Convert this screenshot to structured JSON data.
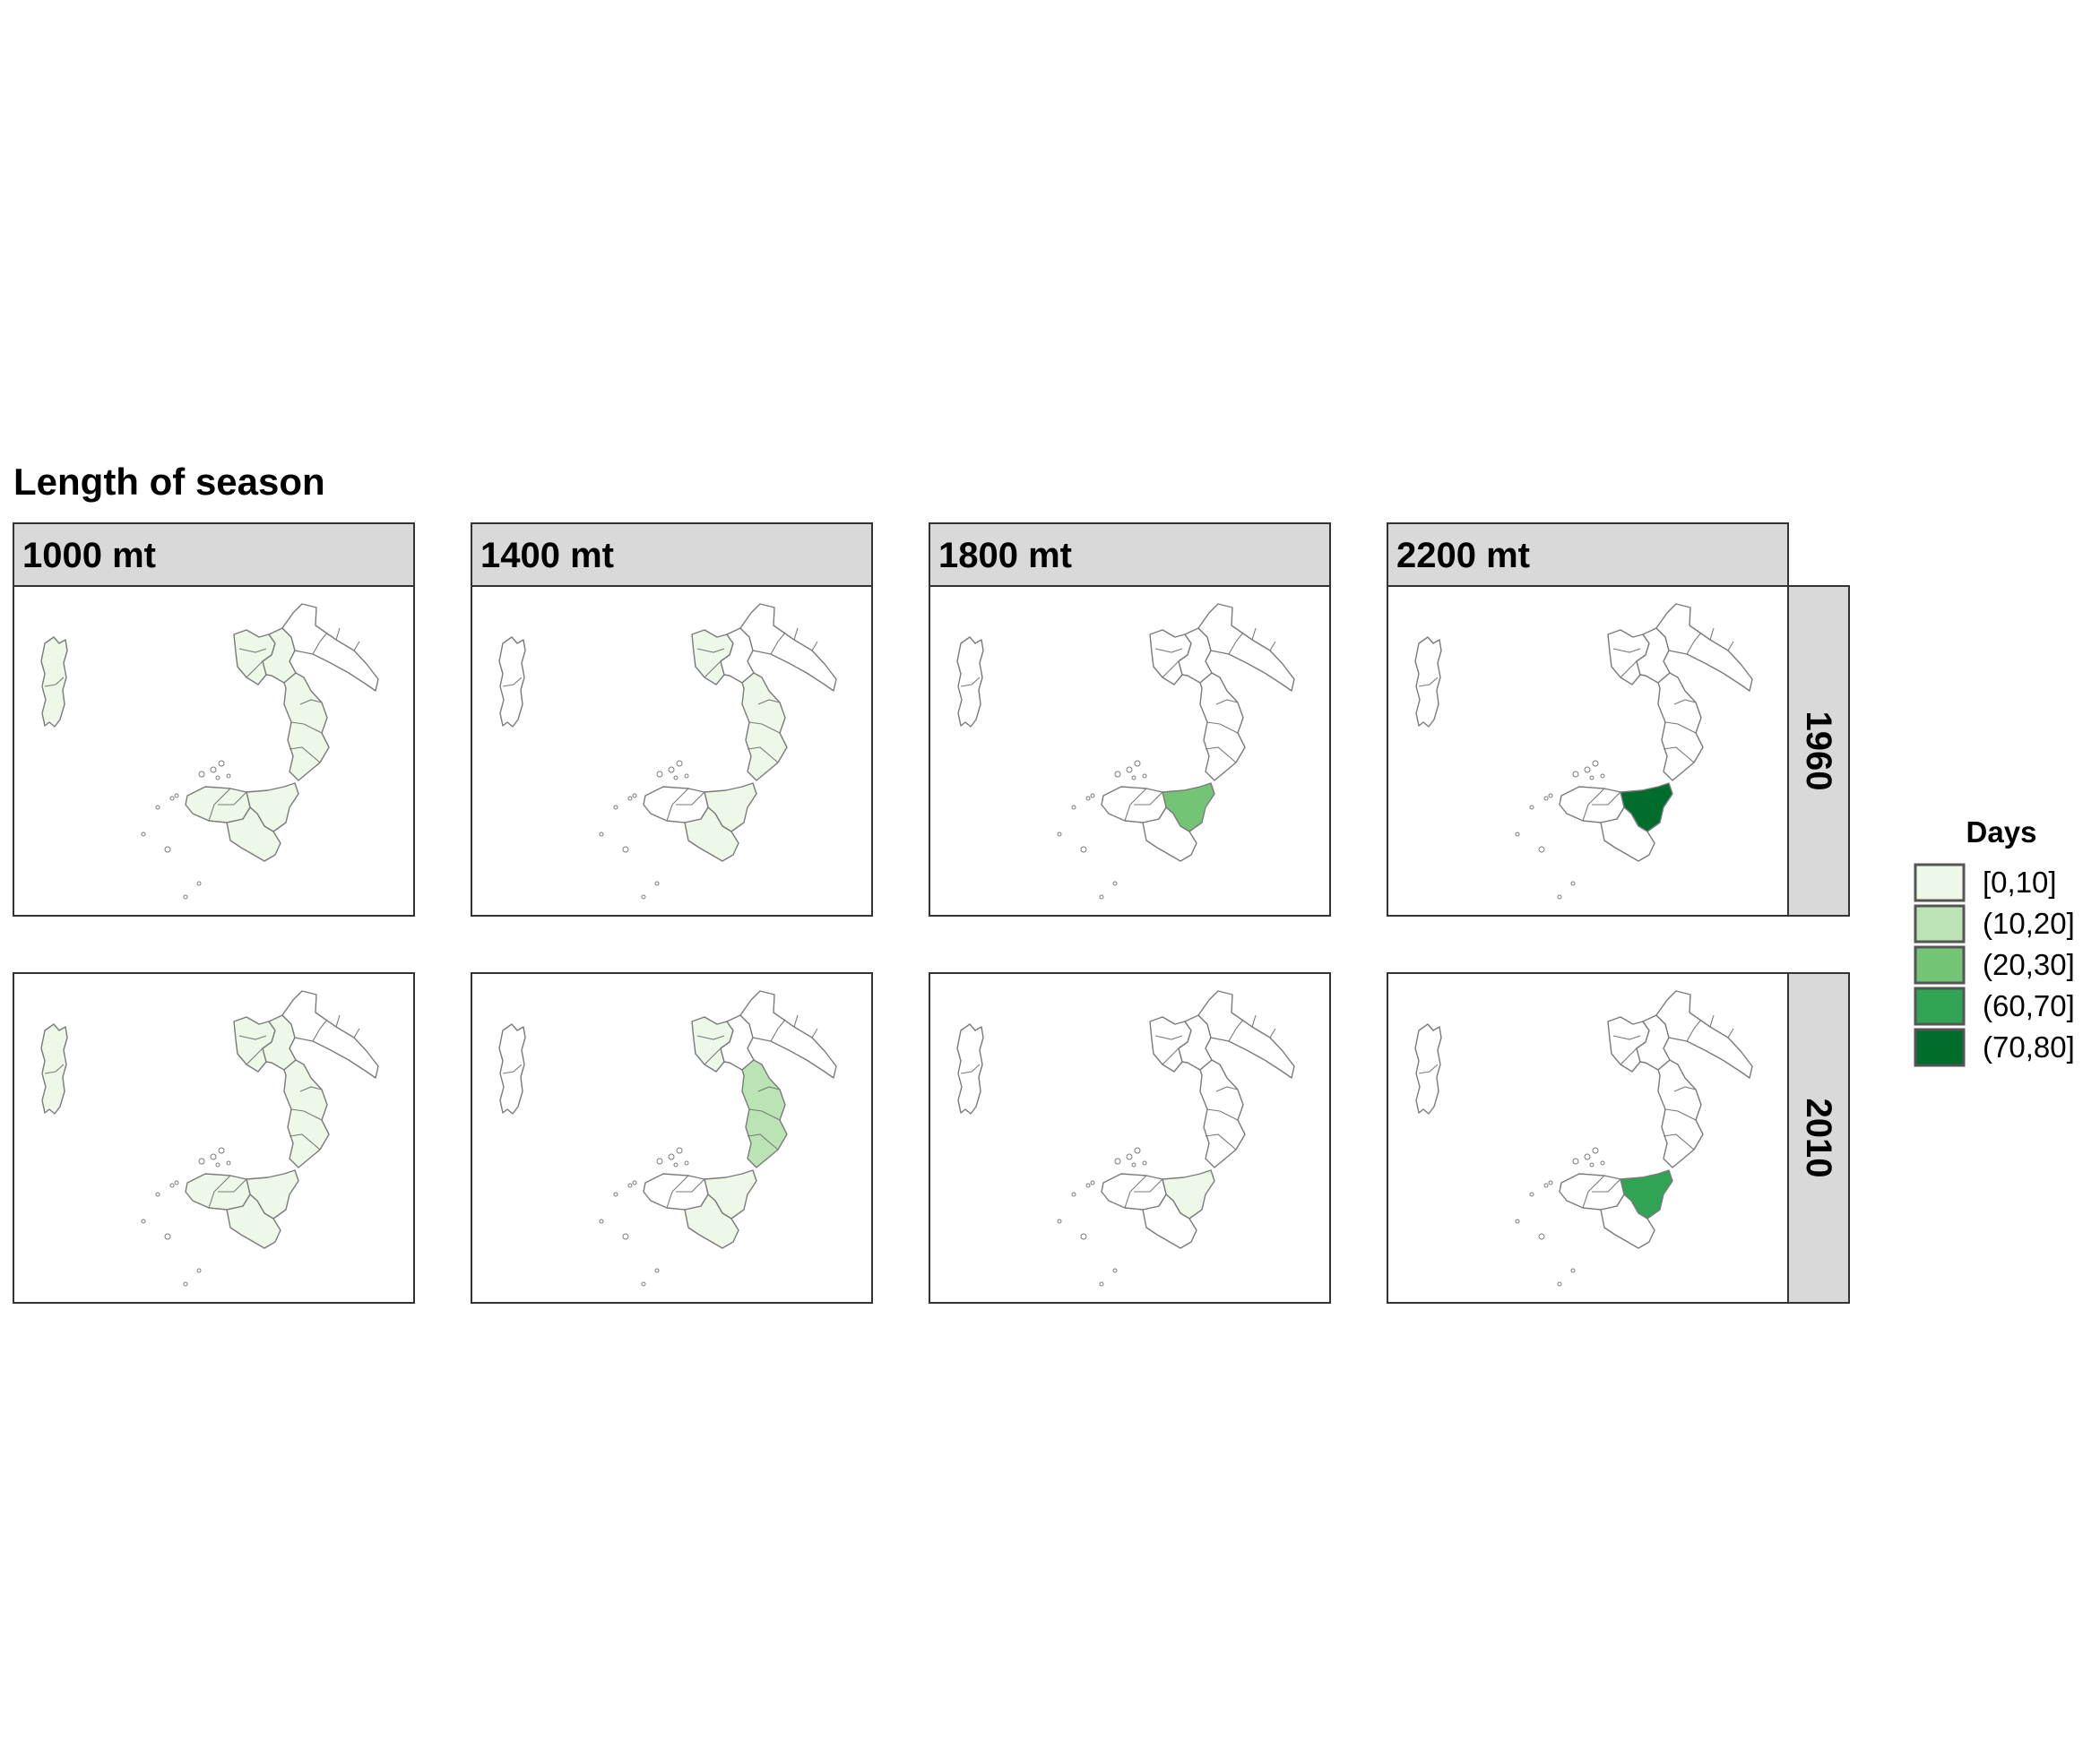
{
  "title": "Length of season",
  "columns": [
    {
      "label": "1000 mt"
    },
    {
      "label": "1400 mt"
    },
    {
      "label": "1800 mt"
    },
    {
      "label": "2200 mt"
    }
  ],
  "rows": [
    {
      "label": "1960"
    },
    {
      "label": "2010"
    }
  ],
  "legend": {
    "title": "Days",
    "items": [
      {
        "label": "[0,10]",
        "color": "#edf8e9"
      },
      {
        "label": "(10,20]",
        "color": "#bae4b3"
      },
      {
        "label": "(20,30]",
        "color": "#74c476"
      },
      {
        "label": "(60,70]",
        "color": "#31a354"
      },
      {
        "label": "(70,80]",
        "color": "#006d2c"
      }
    ]
  },
  "colors": {
    "strip_fill": "#d9d9d9",
    "panel_border": "#333333",
    "boundary": "#7a7a7a",
    "no_data": "#ffffff"
  },
  "map_data": {
    "regions": [
      "Sardinia",
      "Campania",
      "Basilicata",
      "Calabria",
      "Sicily-NE",
      "Sicily-SE",
      "Sicily-W",
      "Puglia"
    ],
    "class_labels": [
      "[0,10]",
      "(10,20]",
      "(20,30]",
      "(60,70]",
      "(70,80]"
    ],
    "panels": [
      {
        "elevation": "1000 mt",
        "year": "1960",
        "classes": {
          "Sardinia": 0,
          "Campania": 0,
          "Basilicata": 0,
          "Calabria": 0,
          "Sicily-NE": 0,
          "Sicily-SE": 0,
          "Sicily-W": 0,
          "Puglia": null
        }
      },
      {
        "elevation": "1400 mt",
        "year": "1960",
        "classes": {
          "Sardinia": null,
          "Campania": 0,
          "Basilicata": null,
          "Calabria": 0,
          "Sicily-NE": 0,
          "Sicily-SE": 0,
          "Sicily-W": null,
          "Puglia": null
        }
      },
      {
        "elevation": "1800 mt",
        "year": "1960",
        "classes": {
          "Sardinia": null,
          "Campania": null,
          "Basilicata": null,
          "Calabria": null,
          "Sicily-NE": 2,
          "Sicily-SE": null,
          "Sicily-W": null,
          "Puglia": null
        }
      },
      {
        "elevation": "2200 mt",
        "year": "1960",
        "classes": {
          "Sardinia": null,
          "Campania": null,
          "Basilicata": null,
          "Calabria": null,
          "Sicily-NE": 4,
          "Sicily-SE": null,
          "Sicily-W": null,
          "Puglia": null
        }
      },
      {
        "elevation": "1000 mt",
        "year": "2010",
        "classes": {
          "Sardinia": 0,
          "Campania": 0,
          "Basilicata": 0,
          "Calabria": 0,
          "Sicily-NE": 0,
          "Sicily-SE": 0,
          "Sicily-W": 0,
          "Puglia": null
        }
      },
      {
        "elevation": "1400 mt",
        "year": "2010",
        "classes": {
          "Sardinia": null,
          "Campania": 0,
          "Basilicata": null,
          "Calabria": 1,
          "Sicily-NE": 0,
          "Sicily-SE": 0,
          "Sicily-W": null,
          "Puglia": null
        }
      },
      {
        "elevation": "1800 mt",
        "year": "2010",
        "classes": {
          "Sardinia": null,
          "Campania": null,
          "Basilicata": null,
          "Calabria": null,
          "Sicily-NE": 0,
          "Sicily-SE": null,
          "Sicily-W": null,
          "Puglia": null
        }
      },
      {
        "elevation": "2200 mt",
        "year": "2010",
        "classes": {
          "Sardinia": null,
          "Campania": null,
          "Basilicata": null,
          "Calabria": null,
          "Sicily-NE": 3,
          "Sicily-SE": null,
          "Sicily-W": null,
          "Puglia": null
        }
      }
    ]
  }
}
